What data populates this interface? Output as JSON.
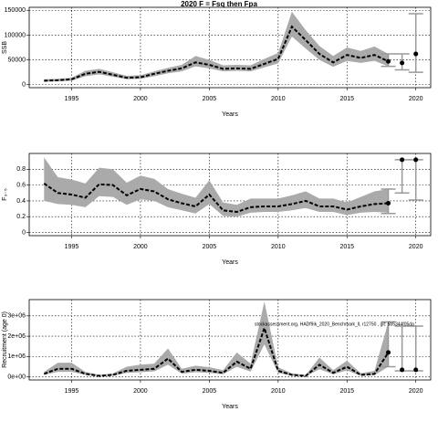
{
  "title": "2020 F = Fsq then Fpa",
  "chart_data": [
    {
      "type": "line",
      "ylabel": "SSB",
      "xlabel": "Years",
      "xlim": [
        1991.92,
        2021.08
      ],
      "ylim": [
        -6000,
        156000
      ],
      "xticks": [
        1995,
        2000,
        2005,
        2010,
        2015,
        2020
      ],
      "yticks": [
        0,
        50000,
        100000,
        150000
      ],
      "grid": true,
      "x": [
        1993,
        1994,
        1995,
        1996,
        1997,
        1998,
        1999,
        2000,
        2001,
        2002,
        2003,
        2004,
        2005,
        2006,
        2007,
        2008,
        2009,
        2010,
        2011,
        2012,
        2013,
        2014,
        2015,
        2016,
        2017,
        2018
      ],
      "values": [
        8000,
        9000,
        11000,
        22000,
        26000,
        20000,
        14000,
        15000,
        22000,
        28000,
        33000,
        45000,
        40000,
        32000,
        33000,
        32000,
        42000,
        52000,
        117000,
        90000,
        62000,
        45000,
        60000,
        54000,
        60000,
        47000
      ],
      "lower": [
        6000,
        7000,
        8000,
        17000,
        21000,
        16000,
        11000,
        12000,
        17000,
        23000,
        27000,
        37000,
        33000,
        27000,
        28000,
        27000,
        35000,
        43000,
        97000,
        73000,
        50000,
        36000,
        48000,
        44000,
        48000,
        37000
      ],
      "upper": [
        11000,
        12000,
        14000,
        28000,
        32000,
        25000,
        18000,
        19000,
        27000,
        34000,
        40000,
        58000,
        50000,
        39000,
        40000,
        39000,
        52000,
        64000,
        147000,
        110000,
        78000,
        58000,
        75000,
        68000,
        77000,
        62000
      ],
      "projection": {
        "x": [
          2018,
          2019,
          2020
        ],
        "values": [
          47000,
          44000,
          62000
        ],
        "lower": [
          37000,
          30000,
          25000
        ],
        "upper": [
          62000,
          62000,
          143000
        ]
      }
    },
    {
      "type": "line",
      "ylabel": "F₃₋₅",
      "xlabel": "Years",
      "xlim": [
        1991.92,
        2021.08
      ],
      "ylim": [
        -0.04,
        1.0
      ],
      "xticks": [
        1995,
        2000,
        2005,
        2010,
        2015,
        2020
      ],
      "yticks": [
        0.0,
        0.2,
        0.4,
        0.6,
        0.8
      ],
      "grid": true,
      "x": [
        1993,
        1994,
        1995,
        1996,
        1997,
        1998,
        1999,
        2000,
        2001,
        2002,
        2003,
        2004,
        2005,
        2006,
        2007,
        2008,
        2009,
        2010,
        2011,
        2012,
        2013,
        2014,
        2015,
        2016,
        2017,
        2018
      ],
      "values": [
        0.62,
        0.5,
        0.48,
        0.44,
        0.61,
        0.6,
        0.47,
        0.55,
        0.52,
        0.42,
        0.37,
        0.33,
        0.48,
        0.28,
        0.26,
        0.32,
        0.33,
        0.33,
        0.36,
        0.4,
        0.33,
        0.33,
        0.29,
        0.33,
        0.36,
        0.37
      ],
      "lower": [
        0.4,
        0.36,
        0.35,
        0.32,
        0.46,
        0.45,
        0.35,
        0.42,
        0.4,
        0.32,
        0.28,
        0.24,
        0.36,
        0.21,
        0.2,
        0.25,
        0.26,
        0.26,
        0.28,
        0.31,
        0.26,
        0.26,
        0.22,
        0.25,
        0.26,
        0.25
      ],
      "upper": [
        0.95,
        0.7,
        0.67,
        0.62,
        0.82,
        0.8,
        0.63,
        0.72,
        0.68,
        0.55,
        0.49,
        0.44,
        0.66,
        0.38,
        0.35,
        0.43,
        0.43,
        0.43,
        0.47,
        0.52,
        0.43,
        0.43,
        0.38,
        0.45,
        0.52,
        0.55
      ],
      "projection": {
        "x": [
          2018,
          2019,
          2020
        ],
        "values": [
          0.37,
          0.92,
          0.92
        ],
        "lower": [
          0.24,
          0.5,
          0.41
        ],
        "upper": [
          0.55,
          0.92,
          0.92
        ]
      }
    },
    {
      "type": "line",
      "ylabel": "Recruitment (age 0)",
      "xlabel": "Years",
      "xlim": [
        1991.92,
        2021.08
      ],
      "ylim": [
        -150000,
        3800000
      ],
      "xticks": [
        1995,
        2000,
        2005,
        2010,
        2015,
        2020
      ],
      "yticks": [
        {
          "value": 0,
          "label": "0e+00"
        },
        {
          "value": 1000000,
          "label": "1e+06"
        },
        {
          "value": 2000000,
          "label": "2e+06"
        },
        {
          "value": 3000000,
          "label": "3e+06"
        }
      ],
      "grid": true,
      "annotation": "stockassessment.org, HADf9ik_2020_Benchmark_ll, r12750 , git: 5b5344f05da",
      "x": [
        1993,
        1994,
        1995,
        1996,
        1997,
        1998,
        1999,
        2000,
        2001,
        2002,
        2003,
        2004,
        2005,
        2006,
        2007,
        2008,
        2009,
        2010,
        2011,
        2012,
        2013,
        2014,
        2015,
        2016,
        2017,
        2018
      ],
      "values": [
        150000,
        400000,
        400000,
        150000,
        50000,
        100000,
        300000,
        350000,
        400000,
        900000,
        250000,
        350000,
        300000,
        200000,
        750000,
        400000,
        2400000,
        300000,
        100000,
        50000,
        600000,
        200000,
        500000,
        100000,
        150000,
        1200000
      ],
      "lower": [
        100000,
        250000,
        250000,
        100000,
        30000,
        60000,
        200000,
        230000,
        270000,
        600000,
        160000,
        230000,
        200000,
        130000,
        500000,
        260000,
        1600000,
        200000,
        60000,
        30000,
        380000,
        130000,
        320000,
        60000,
        80000,
        500000
      ],
      "upper": [
        250000,
        700000,
        700000,
        250000,
        100000,
        170000,
        500000,
        600000,
        650000,
        1400000,
        400000,
        550000,
        480000,
        330000,
        1200000,
        650000,
        3700000,
        480000,
        170000,
        90000,
        950000,
        330000,
        800000,
        180000,
        300000,
        2700000
      ],
      "projection": {
        "x": [
          2018,
          2019,
          2020
        ],
        "values": [
          1200000,
          350000,
          350000
        ],
        "lower": [
          500000,
          300000,
          300000
        ],
        "upper": [
          2700000,
          2500000,
          2500000
        ]
      }
    }
  ]
}
